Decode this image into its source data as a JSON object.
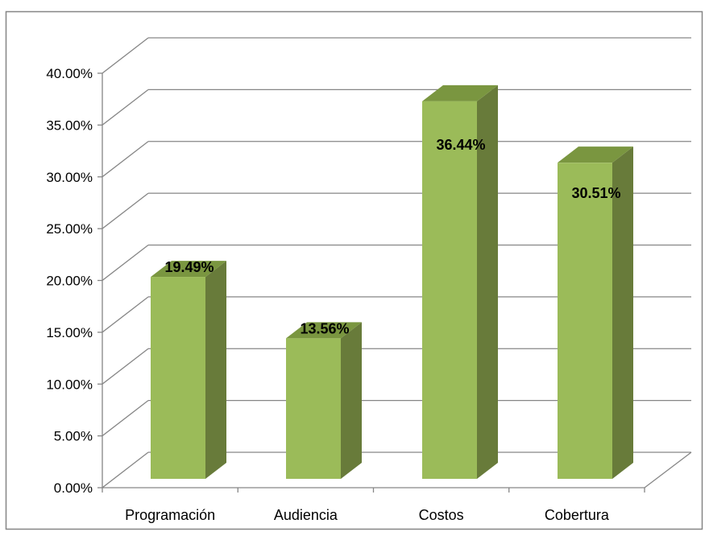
{
  "chart_data": {
    "type": "bar",
    "style": "3d-column",
    "categories": [
      "Programación",
      "Audiencia",
      "Costos",
      "Cobertura"
    ],
    "series": [
      {
        "values": [
          19.49,
          13.56,
          36.44,
          30.51
        ]
      }
    ],
    "data_labels": [
      "19.49%",
      "13.56%",
      "36.44%",
      "30.51%"
    ],
    "y_ticks": [
      "0.00%",
      "5.00%",
      "10.00%",
      "15.00%",
      "20.00%",
      "25.00%",
      "30.00%",
      "35.00%",
      "40.00%"
    ],
    "ylim": [
      0,
      40
    ],
    "title": "",
    "xlabel": "",
    "ylabel": "",
    "grid": true,
    "legend": "none",
    "colors": {
      "bar_front": "#9BBB59",
      "bar_side": "#687B3A",
      "bar_top": "#7A9640",
      "gridline": "#868686",
      "frame": "#868686"
    }
  }
}
